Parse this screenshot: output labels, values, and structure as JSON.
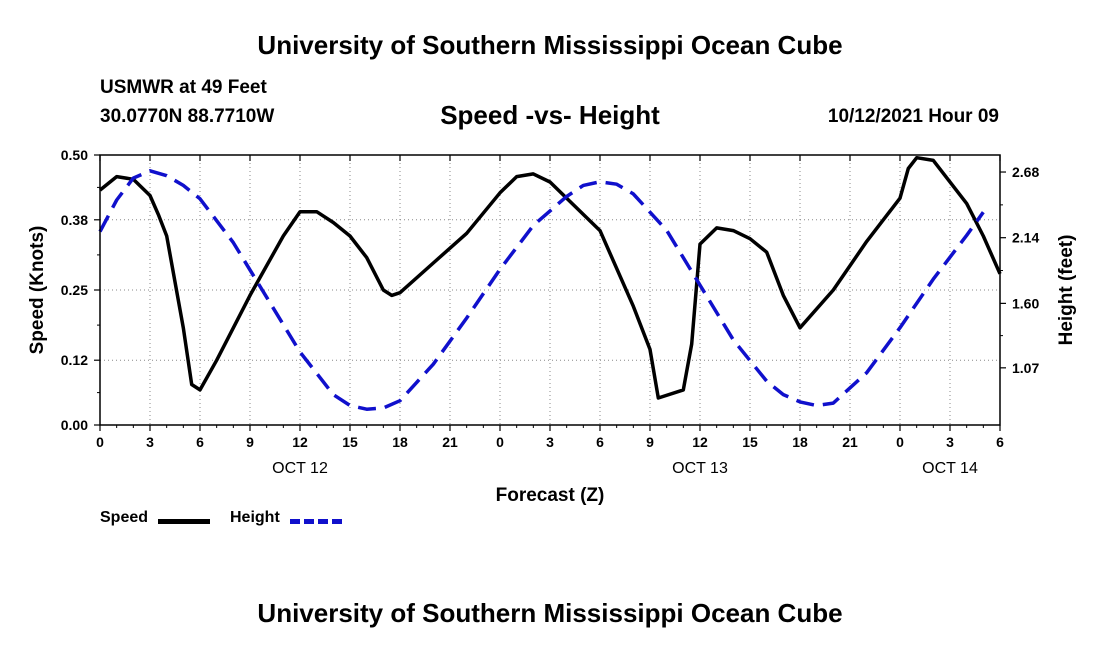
{
  "header": {
    "title": "University of Southern Mississippi Ocean Cube",
    "station": "USMWR at 49 Feet",
    "coords": "30.0770N  88.7710W",
    "subtitle": "Speed -vs- Height",
    "timestamp": "10/12/2021 Hour 09"
  },
  "footer": {
    "title": "University of Southern Mississippi Ocean Cube"
  },
  "legend": {
    "speed_label": "Speed",
    "height_label": "Height"
  },
  "chart_data": {
    "type": "line",
    "xlabel": "Forecast (Z)",
    "ylabel": "Speed (Knots)",
    "y2label": "Height (feet)",
    "xlim": [
      0,
      54
    ],
    "ylim": [
      0,
      0.5
    ],
    "y2lim": [
      0.6,
      2.82
    ],
    "x_ticks": [
      0,
      3,
      6,
      9,
      12,
      15,
      18,
      21,
      24,
      27,
      30,
      33,
      36,
      39,
      42,
      45,
      48,
      51,
      54
    ],
    "x_tick_labels": [
      "0",
      "3",
      "6",
      "9",
      "12",
      "15",
      "18",
      "21",
      "0",
      "3",
      "6",
      "9",
      "12",
      "15",
      "18",
      "21",
      "0",
      "3",
      "6"
    ],
    "date_labels": [
      {
        "x": 12,
        "text": "OCT 12"
      },
      {
        "x": 36,
        "text": "OCT 13"
      },
      {
        "x": 51,
        "text": "OCT 14"
      }
    ],
    "y_ticks": [
      0.0,
      0.12,
      0.25,
      0.38,
      0.5
    ],
    "y_tick_labels": [
      "0.00",
      "0.12",
      "0.25",
      "0.38",
      "0.50"
    ],
    "y2_ticks": [
      1.07,
      1.6,
      2.14,
      2.68
    ],
    "y2_tick_labels": [
      "1.07",
      "1.60",
      "2.14",
      "2.68"
    ],
    "series": [
      {
        "name": "Speed",
        "axis": "left",
        "color": "#000000",
        "dash": "solid",
        "x": [
          0,
          1,
          2,
          3,
          3.5,
          4,
          5,
          5.5,
          6,
          7,
          9,
          11,
          12,
          13,
          14,
          15,
          16,
          17,
          17.5,
          18,
          20,
          22,
          24,
          25,
          26,
          27,
          28,
          30,
          32,
          33,
          33.5,
          35,
          35.5,
          36,
          37,
          38,
          39,
          40,
          41,
          42,
          44,
          46,
          48,
          48.5,
          49,
          50,
          52,
          53,
          54
        ],
        "values": [
          0.435,
          0.46,
          0.455,
          0.425,
          0.39,
          0.35,
          0.18,
          0.075,
          0.065,
          0.12,
          0.24,
          0.35,
          0.395,
          0.395,
          0.375,
          0.35,
          0.31,
          0.25,
          0.24,
          0.245,
          0.3,
          0.355,
          0.43,
          0.46,
          0.465,
          0.45,
          0.42,
          0.36,
          0.22,
          0.14,
          0.05,
          0.065,
          0.15,
          0.335,
          0.365,
          0.36,
          0.345,
          0.32,
          0.24,
          0.18,
          0.25,
          0.34,
          0.42,
          0.475,
          0.495,
          0.49,
          0.41,
          0.35,
          0.28
        ]
      },
      {
        "name": "Height",
        "axis": "right",
        "color": "#1010cc",
        "dash": "dashed",
        "x": [
          0,
          1,
          2,
          3,
          4,
          5,
          6,
          8,
          10,
          12,
          14,
          15,
          16,
          17,
          18,
          20,
          22,
          24,
          26,
          28,
          29,
          30,
          31,
          32,
          34,
          36,
          38,
          40,
          41,
          42,
          43,
          44,
          46,
          48,
          50,
          52,
          53
        ],
        "values": [
          2.19,
          2.45,
          2.63,
          2.69,
          2.65,
          2.57,
          2.46,
          2.1,
          1.65,
          1.2,
          0.85,
          0.76,
          0.73,
          0.74,
          0.8,
          1.1,
          1.48,
          1.88,
          2.24,
          2.48,
          2.57,
          2.6,
          2.58,
          2.5,
          2.2,
          1.75,
          1.3,
          0.96,
          0.85,
          0.79,
          0.76,
          0.78,
          1.03,
          1.4,
          1.8,
          2.16,
          2.35
        ]
      }
    ]
  }
}
